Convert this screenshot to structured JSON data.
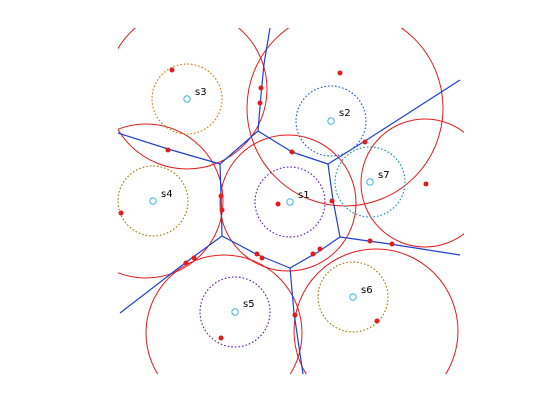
{
  "colors": {
    "background": "#ffffff",
    "big_circle": "#e41a1c",
    "edge": "#1f3fd6",
    "point": "#e41a1c",
    "site_marker": "#3db8e0"
  },
  "sites": [
    {
      "id": "s1",
      "label": "s1",
      "dot_color": "#6a1fb0"
    },
    {
      "id": "s2",
      "label": "s2",
      "dot_color": "#1f5fd6"
    },
    {
      "id": "s3",
      "label": "s3",
      "dot_color": "#e07a00"
    },
    {
      "id": "s4",
      "label": "s4",
      "dot_color": "#a08000"
    },
    {
      "id": "s5",
      "label": "s5",
      "dot_color": "#6a1fb0"
    },
    {
      "id": "s6",
      "label": "s6",
      "dot_color": "#a08000"
    },
    {
      "id": "s7",
      "label": "s7",
      "dot_color": "#1f8fb0"
    }
  ]
}
